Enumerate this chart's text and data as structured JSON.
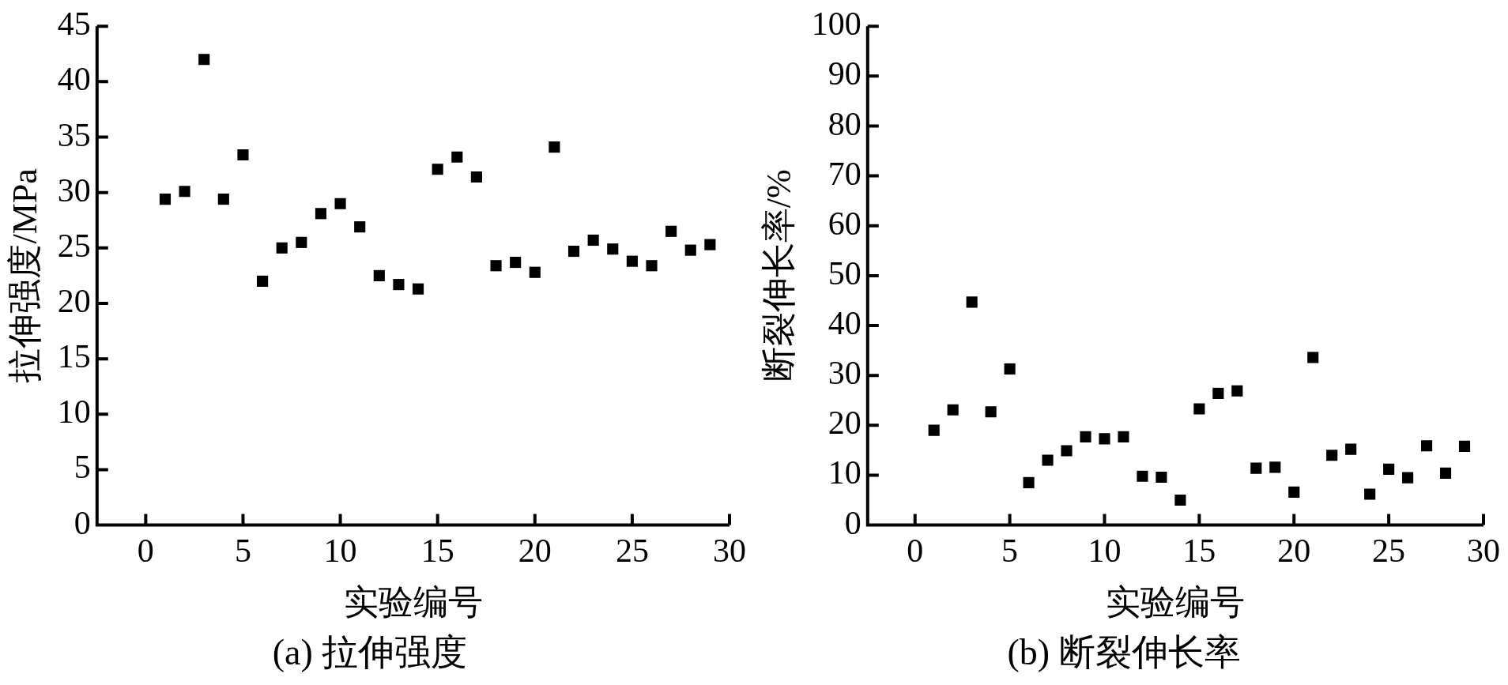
{
  "chart_data": [
    {
      "type": "scatter",
      "title": "(a) 拉伸强度",
      "xlabel": "实验编号",
      "ylabel": "拉伸强度/MPa",
      "x": [
        1,
        2,
        3,
        4,
        5,
        6,
        7,
        8,
        9,
        10,
        11,
        12,
        13,
        14,
        15,
        16,
        17,
        18,
        19,
        20,
        21,
        22,
        23,
        24,
        25,
        26,
        27,
        28,
        29
      ],
      "series": [
        {
          "color": "#000000",
          "values": [
            29.4,
            30.1,
            42.0,
            29.4,
            33.4,
            22.0,
            25.0,
            25.5,
            28.1,
            29.0,
            26.9,
            22.5,
            21.7,
            21.3,
            32.1,
            33.2,
            31.4,
            23.4,
            23.7,
            22.8,
            34.1,
            24.7,
            25.7,
            24.9,
            23.8,
            23.4,
            26.5,
            24.8,
            25.3
          ]
        }
      ],
      "marker": "square",
      "xlim": [
        -2.5,
        30
      ],
      "xticks": [
        0,
        5,
        10,
        15,
        20,
        25,
        30
      ],
      "ylim": [
        0,
        45
      ],
      "yticks": [
        0,
        5,
        10,
        15,
        20,
        25,
        30,
        35,
        40,
        45
      ]
    },
    {
      "type": "scatter",
      "title": "(b) 断裂伸长率",
      "xlabel": "实验编号",
      "ylabel": "断裂伸长率/%",
      "x": [
        1,
        2,
        3,
        4,
        5,
        6,
        7,
        8,
        9,
        10,
        11,
        12,
        13,
        14,
        15,
        16,
        17,
        18,
        19,
        20,
        21,
        22,
        23,
        24,
        25,
        26,
        27,
        28,
        29
      ],
      "series": [
        {
          "color": "#000000",
          "values": [
            19.0,
            23.1,
            44.7,
            22.7,
            31.3,
            8.5,
            13.0,
            14.9,
            17.7,
            17.3,
            17.7,
            9.8,
            9.6,
            5.0,
            23.3,
            26.4,
            26.9,
            11.4,
            11.6,
            6.6,
            33.6,
            14.0,
            15.2,
            6.2,
            11.2,
            9.5,
            15.9,
            10.4,
            15.8
          ]
        }
      ],
      "marker": "square",
      "xlim": [
        -2.5,
        30
      ],
      "xticks": [
        0,
        5,
        10,
        15,
        20,
        25,
        30
      ],
      "ylim": [
        0,
        100
      ],
      "yticks": [
        0,
        10,
        20,
        30,
        40,
        50,
        60,
        70,
        80,
        90,
        100
      ]
    }
  ]
}
